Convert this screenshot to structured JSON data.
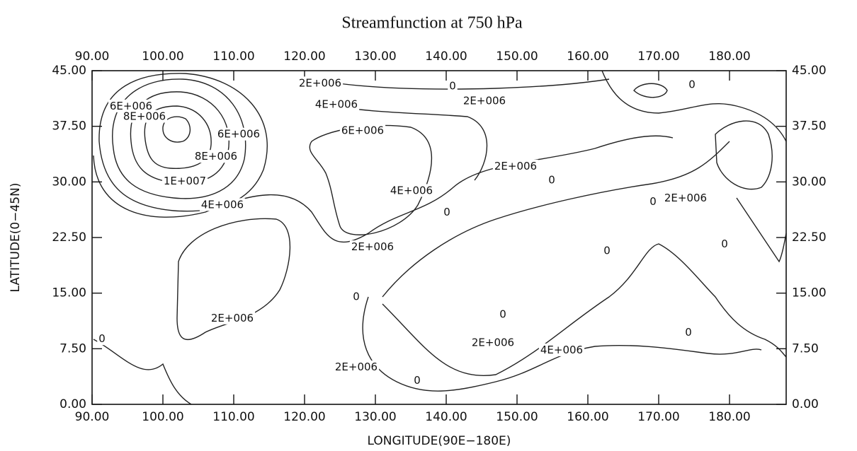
{
  "chart_data": {
    "type": "contour",
    "title": "Streamfunction at 750 hPa",
    "x_label": "LONGITUDE(90E−180E)",
    "y_label": "LATITUDE(0−45N)",
    "xlim": [
      90,
      188
    ],
    "ylim": [
      0,
      45
    ],
    "xticks": [
      {
        "value": 90,
        "label": "90.00"
      },
      {
        "value": 100,
        "label": "100.00"
      },
      {
        "value": 110,
        "label": "110.00"
      },
      {
        "value": 120,
        "label": "120.00"
      },
      {
        "value": 130,
        "label": "130.00"
      },
      {
        "value": 140,
        "label": "140.00"
      },
      {
        "value": 150,
        "label": "150.00"
      },
      {
        "value": 160,
        "label": "160.00"
      },
      {
        "value": 170,
        "label": "170.00"
      },
      {
        "value": 180,
        "label": "180.00"
      }
    ],
    "yticks": [
      {
        "value": 0,
        "label": "0.00"
      },
      {
        "value": 7.5,
        "label": "7.50"
      },
      {
        "value": 15,
        "label": "15.00"
      },
      {
        "value": 22.5,
        "label": "22.50"
      },
      {
        "value": 30,
        "label": "30.00"
      },
      {
        "value": 37.5,
        "label": "37.50"
      },
      {
        "value": 45,
        "label": "45.00"
      }
    ],
    "contour_labels": [
      {
        "label": "6E+006",
        "x": 95.5,
        "y": 40.2
      },
      {
        "label": "8E+006",
        "x": 97.4,
        "y": 38.8
      },
      {
        "label": "1E+007",
        "x": 103.1,
        "y": 30.1
      },
      {
        "label": "8E+006",
        "x": 107.5,
        "y": 33.4
      },
      {
        "label": "6E+006",
        "x": 110.7,
        "y": 36.4
      },
      {
        "label": "4E+006",
        "x": 108.4,
        "y": 26.9
      },
      {
        "label": "2E+006",
        "x": 122.2,
        "y": 43.3
      },
      {
        "label": "4E+006",
        "x": 124.5,
        "y": 40.4
      },
      {
        "label": "6E+006",
        "x": 128.2,
        "y": 36.9
      },
      {
        "label": "0",
        "x": 140.9,
        "y": 42.9
      },
      {
        "label": "2E+006",
        "x": 145.4,
        "y": 40.9
      },
      {
        "label": "0",
        "x": 174.7,
        "y": 43.1
      },
      {
        "label": "4E+006",
        "x": 135.1,
        "y": 28.8
      },
      {
        "label": "0",
        "x": 140.1,
        "y": 25.9
      },
      {
        "label": "2E+006",
        "x": 149.8,
        "y": 32.1
      },
      {
        "label": "0",
        "x": 154.9,
        "y": 30.2
      },
      {
        "label": "2E+006",
        "x": 173.8,
        "y": 27.8
      },
      {
        "label": "0",
        "x": 169.2,
        "y": 27.3
      },
      {
        "label": "2E+006",
        "x": 129.6,
        "y": 21.2
      },
      {
        "label": "0",
        "x": 127.3,
        "y": 14.5
      },
      {
        "label": "2E+006",
        "x": 109.8,
        "y": 11.6
      },
      {
        "label": "0",
        "x": 91.4,
        "y": 8.8
      },
      {
        "label": "0",
        "x": 179.3,
        "y": 21.6
      },
      {
        "label": "0",
        "x": 162.7,
        "y": 20.7
      },
      {
        "label": "0",
        "x": 148.0,
        "y": 12.1
      },
      {
        "label": "0",
        "x": 174.2,
        "y": 9.7
      },
      {
        "label": "2E+006",
        "x": 146.6,
        "y": 8.3
      },
      {
        "label": "4E+006",
        "x": 156.3,
        "y": 7.3
      },
      {
        "label": "2E+006",
        "x": 127.3,
        "y": 5.0
      },
      {
        "label": "0",
        "x": 135.9,
        "y": 3.2
      }
    ]
  }
}
